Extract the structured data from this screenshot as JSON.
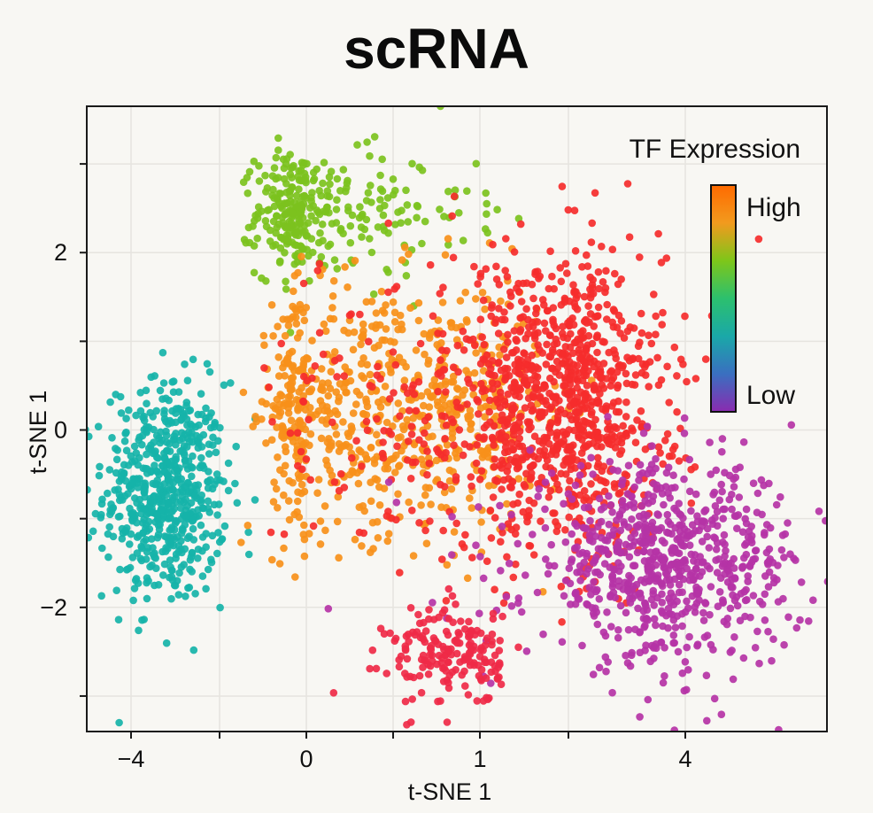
{
  "chart_data": {
    "type": "scatter",
    "title": "scRNA",
    "xlabel": "t-SNE 1",
    "ylabel": "t-SNE 1",
    "x_ticks": [
      "-4",
      "0",
      "1",
      "4"
    ],
    "y_ticks": [
      "2",
      "0",
      "-2"
    ],
    "y_tick_values": [
      2,
      0,
      -2
    ],
    "ylim": [
      -3.4,
      3.65
    ],
    "grid": true,
    "legend": {
      "title": "TF Expression",
      "high_label": "High",
      "low_label": "Low",
      "placement": "top-right",
      "colors": [
        "#ff6a00",
        "#f29a1e",
        "#7ec61a",
        "#2cc06e",
        "#1aa8a8",
        "#3a6fc0",
        "#8a2bb0"
      ]
    },
    "series": [
      {
        "color": "#16b3a9",
        "points": 600,
        "center": [
          -3.2,
          -0.7
        ],
        "spread": [
          0.42,
          0.62
        ]
      },
      {
        "color": "#7cc21e",
        "points": 330,
        "center": [
          -0.1,
          2.45
        ],
        "spread": [
          0.33,
          0.35
        ]
      },
      {
        "color": "#f7901a",
        "points": 750,
        "center": [
          0.45,
          0.25
        ],
        "spread": [
          0.38,
          0.72
        ]
      },
      {
        "color": "#f52d2d",
        "points": 1100,
        "center": [
          1.85,
          0.3
        ],
        "spread": [
          0.55,
          0.85
        ]
      },
      {
        "color": "#b533a6",
        "points": 750,
        "center": [
          3.6,
          -1.5
        ],
        "spread": [
          0.65,
          0.55
        ]
      },
      {
        "color": "#ef2a48",
        "points": 180,
        "center": [
          0.85,
          -2.55
        ],
        "spread": [
          0.12,
          0.28
        ]
      }
    ]
  }
}
